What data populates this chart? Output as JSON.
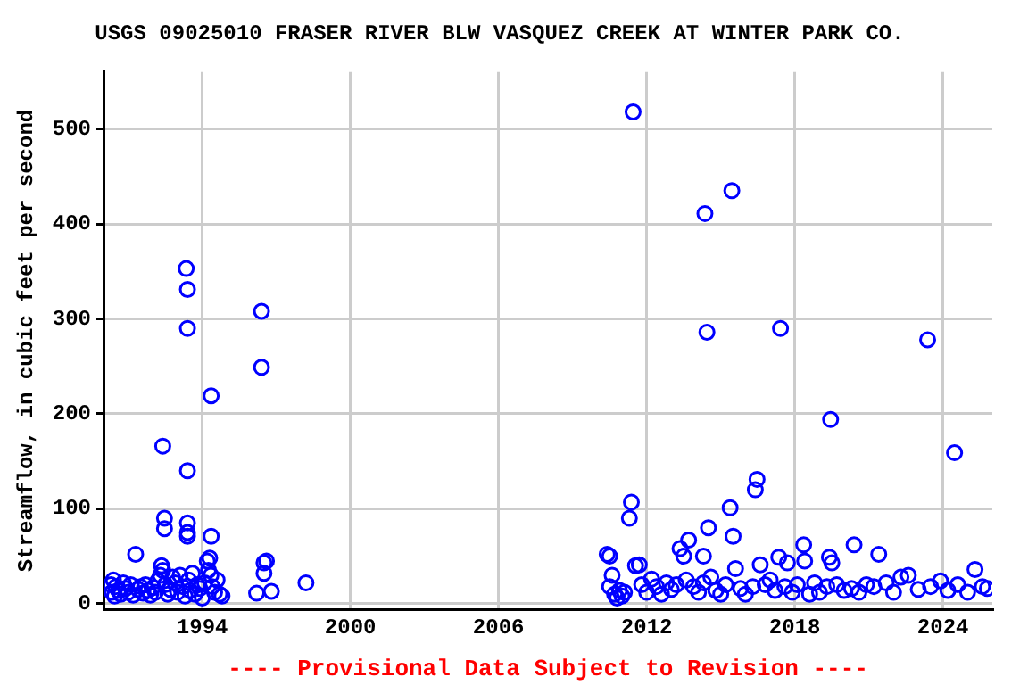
{
  "chart_data": {
    "type": "scatter",
    "title": "USGS 09025010 FRASER RIVER BLW VASQUEZ CREEK AT WINTER PARK CO.",
    "ylabel": "Streamflow, in cubic feet per second",
    "annotations": [
      "---- Provisional Data Subject to Revision ----"
    ],
    "xlim": [
      1990,
      2026
    ],
    "xticks": [
      1994,
      2000,
      2006,
      2012,
      2018,
      2024
    ],
    "ylim": [
      -6,
      560
    ],
    "yticks": [
      0,
      100,
      200,
      300,
      400,
      500
    ],
    "grid": true,
    "legend": false,
    "marker": "circle",
    "series": [
      {
        "color": "#0000ff",
        "x": [
          1993.35,
          1993.4,
          1993.4,
          1994.36,
          1992.4,
          1993.4,
          1992.47,
          1992.47,
          1993.4,
          1993.4,
          1993.4,
          1994.36,
          1991.3,
          1996.4,
          1996.4,
          1996.5,
          1996.6,
          1996.5,
          1996.2,
          1996.8,
          1998.2,
          1990.3,
          1990.35,
          1990.4,
          1990.45,
          1990.5,
          1990.6,
          1990.7,
          1990.8,
          1990.9,
          1991.0,
          1991.1,
          1991.2,
          1991.4,
          1991.5,
          1991.6,
          1991.7,
          1991.8,
          1991.9,
          1992.0,
          1992.1,
          1992.2,
          1992.3,
          1992.35,
          1992.4,
          1992.5,
          1992.6,
          1992.7,
          1992.8,
          1992.9,
          1993.0,
          1993.1,
          1993.2,
          1993.3,
          1993.45,
          1993.5,
          1993.6,
          1993.7,
          1993.8,
          1993.9,
          1994.0,
          1994.1,
          1994.2,
          1994.25,
          1994.3,
          1994.35,
          1994.4,
          1994.5,
          1994.6,
          1994.7,
          1994.8,
          2011.45,
          2014.36,
          2015.45,
          2014.44,
          2017.42,
          2023.38,
          2019.45,
          2024.47,
          2016.47,
          2016.4,
          2011.38,
          2011.3,
          2015.38,
          2014.5,
          2015.5,
          2013.7,
          2013.35,
          2013.5,
          2010.4,
          2010.5,
          2014.3,
          2018.36,
          2020.4,
          2021.4,
          2018.4,
          2019.4,
          2019.5,
          2017.35,
          2016.6,
          2017.7,
          2011.7,
          2025.3,
          2015.6,
          2010.6,
          2010.5,
          2010.7,
          2010.8,
          2010.9,
          2011.0,
          2011.1,
          2011.55,
          2011.8,
          2012.0,
          2012.2,
          2012.4,
          2012.6,
          2012.8,
          2013.0,
          2013.2,
          2013.6,
          2013.9,
          2014.1,
          2014.3,
          2014.6,
          2014.8,
          2015.0,
          2015.2,
          2015.8,
          2016.0,
          2016.3,
          2016.8,
          2017.0,
          2017.2,
          2017.6,
          2017.9,
          2018.1,
          2018.6,
          2018.8,
          2019.0,
          2019.3,
          2019.7,
          2020.0,
          2020.3,
          2020.6,
          2020.9,
          2021.2,
          2021.7,
          2022.0,
          2022.3,
          2022.6,
          2023.0,
          2023.5,
          2023.9,
          2024.2,
          2024.6,
          2025.0,
          2025.6,
          2025.8
        ],
        "values": [
          353,
          331,
          290,
          219,
          166,
          140,
          90,
          79,
          85,
          75,
          71,
          71,
          52,
          308,
          249,
          43,
          45,
          32,
          11,
          13,
          22,
          20,
          12,
          25,
          8,
          18,
          14,
          10,
          22,
          16,
          12,
          20,
          9,
          15,
          18,
          11,
          20,
          14,
          9,
          17,
          12,
          24,
          30,
          40,
          35,
          20,
          10,
          15,
          28,
          22,
          12,
          30,
          18,
          8,
          25,
          14,
          32,
          10,
          20,
          16,
          6,
          22,
          45,
          35,
          48,
          30,
          18,
          12,
          25,
          10,
          8,
          518,
          411,
          435,
          286,
          290,
          278,
          194,
          159,
          131,
          120,
          107,
          90,
          101,
          80,
          71,
          67,
          58,
          50,
          52,
          50,
          50,
          62,
          62,
          52,
          45,
          49,
          43,
          49,
          41,
          43,
          41,
          36,
          37,
          30,
          18,
          10,
          6,
          14,
          8,
          12,
          40,
          20,
          12,
          26,
          18,
          10,
          22,
          15,
          20,
          25,
          18,
          12,
          22,
          28,
          14,
          10,
          20,
          16,
          10,
          18,
          20,
          25,
          14,
          18,
          12,
          20,
          10,
          22,
          12,
          18,
          20,
          14,
          16,
          12,
          20,
          18,
          22,
          12,
          28,
          30,
          15,
          18,
          24,
          14,
          20,
          12,
          18,
          16
        ]
      }
    ]
  }
}
